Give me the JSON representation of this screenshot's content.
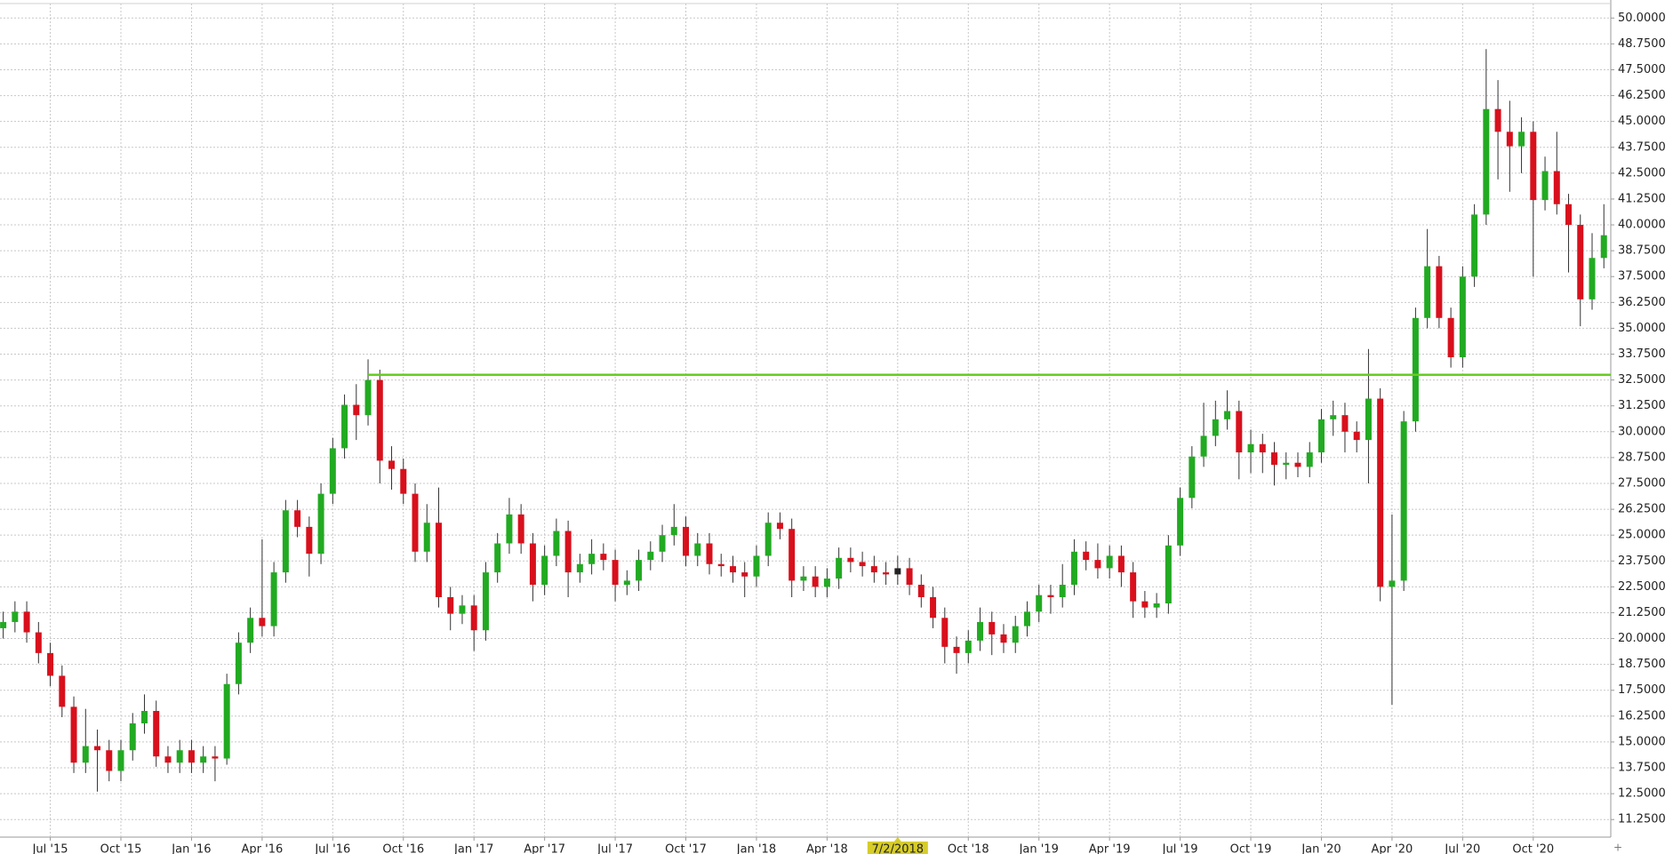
{
  "chart_data": {
    "type": "candlestick",
    "categories": [
      null,
      null,
      null,
      null,
      "Jul '15",
      null,
      null,
      null,
      null,
      null,
      "Oct '15",
      null,
      null,
      null,
      null,
      null,
      "Jan '16",
      null,
      null,
      null,
      null,
      null,
      "Apr '16",
      null,
      null,
      null,
      null,
      null,
      "Jul '16",
      null,
      null,
      null,
      null,
      null,
      "Oct '16",
      null,
      null,
      null,
      null,
      null,
      "Jan '17",
      null,
      null,
      null,
      null,
      null,
      "Apr '17",
      null,
      null,
      null,
      null,
      null,
      "Jul '17",
      null,
      null,
      null,
      null,
      null,
      "Oct '17",
      null,
      null,
      null,
      null,
      null,
      "Jan '18",
      null,
      null,
      null,
      null,
      null,
      "Apr '18",
      null,
      null,
      null,
      null,
      null,
      "7/2/2018",
      null,
      null,
      null,
      null,
      null,
      "Oct '18",
      null,
      null,
      null,
      null,
      null,
      "Jan '19",
      null,
      null,
      null,
      null,
      null,
      "Apr '19",
      null,
      null,
      null,
      null,
      null,
      "Jul '19",
      null,
      null,
      null,
      null,
      null,
      "Oct '19",
      null,
      null,
      null,
      null,
      null,
      "Jan '20",
      null,
      null,
      null,
      null,
      null,
      "Apr '20",
      null,
      null,
      null,
      null,
      null,
      "Jul '20",
      null,
      null,
      null,
      null,
      null,
      "Oct '20",
      null,
      null,
      null,
      null,
      null,
      null
    ],
    "open": [
      20.5,
      20.8,
      21.3,
      20.3,
      19.3,
      18.2,
      16.7,
      14.0,
      14.8,
      14.6,
      13.6,
      14.6,
      15.9,
      16.5,
      14.3,
      14.0,
      14.6,
      14.0,
      14.3,
      14.2,
      17.8,
      19.8,
      21.0,
      20.6,
      23.2,
      26.2,
      25.4,
      24.1,
      27.0,
      29.2,
      31.3,
      30.8,
      32.5,
      28.6,
      28.2,
      27.0,
      24.2,
      25.6,
      22.0,
      21.2,
      21.6,
      20.4,
      23.2,
      24.6,
      26.0,
      24.6,
      22.6,
      24.0,
      25.2,
      23.2,
      23.6,
      24.1,
      23.8,
      22.6,
      22.8,
      23.8,
      24.2,
      25.0,
      25.4,
      24.0,
      24.6,
      23.6,
      23.5,
      23.2,
      23.0,
      24.0,
      25.6,
      25.3,
      22.8,
      23.0,
      22.5,
      22.9,
      23.9,
      23.7,
      23.5,
      23.2,
      23.1,
      23.4,
      22.6,
      22.0,
      21.0,
      19.6,
      19.3,
      19.9,
      20.8,
      20.2,
      19.8,
      20.6,
      21.3,
      22.1,
      22.0,
      22.6,
      24.2,
      23.8,
      23.4,
      24.0,
      23.2,
      21.8,
      21.5,
      21.7,
      24.5,
      26.8,
      28.8,
      29.8,
      30.6,
      31.0,
      29.0,
      29.4,
      29.0,
      28.4,
      28.5,
      28.3,
      29.0,
      30.6,
      30.8,
      30.0,
      29.6,
      31.6,
      22.5,
      22.8,
      30.5,
      35.5,
      38.0,
      35.5,
      33.6,
      37.5,
      40.5,
      45.6,
      44.5,
      43.8,
      44.5,
      41.2,
      42.6,
      41.0,
      40.0,
      36.4,
      38.4
    ],
    "high": [
      21.3,
      21.8,
      21.8,
      20.8,
      19.8,
      18.7,
      17.2,
      16.6,
      15.6,
      15.1,
      15.1,
      16.4,
      17.3,
      17.0,
      14.8,
      15.1,
      15.1,
      14.8,
      14.8,
      18.3,
      20.3,
      21.5,
      24.8,
      23.7,
      26.7,
      26.7,
      25.9,
      27.5,
      29.7,
      31.8,
      32.3,
      33.5,
      33.0,
      29.3,
      28.7,
      27.5,
      26.5,
      27.3,
      22.5,
      22.1,
      22.1,
      23.7,
      25.1,
      26.8,
      26.5,
      25.1,
      24.5,
      25.8,
      25.7,
      24.1,
      24.8,
      24.6,
      24.3,
      23.3,
      24.3,
      24.7,
      25.5,
      26.5,
      25.9,
      25.1,
      25.1,
      24.1,
      24.0,
      23.7,
      24.5,
      26.1,
      26.1,
      25.8,
      23.5,
      23.5,
      23.4,
      24.4,
      24.4,
      24.2,
      24.0,
      23.7,
      24.0,
      23.9,
      23.1,
      22.5,
      21.5,
      20.1,
      20.4,
      21.5,
      21.3,
      20.7,
      21.1,
      21.8,
      22.6,
      22.6,
      23.6,
      24.8,
      24.7,
      24.6,
      24.5,
      24.5,
      23.7,
      22.3,
      22.2,
      25.0,
      27.3,
      29.3,
      31.4,
      31.5,
      32.0,
      31.5,
      30.1,
      29.9,
      29.5,
      29.0,
      29.0,
      29.5,
      31.1,
      31.5,
      31.4,
      30.5,
      34.0,
      32.1,
      26.0,
      31.0,
      36.0,
      39.8,
      38.5,
      36.0,
      38.0,
      41.0,
      48.5,
      47.0,
      46.0,
      45.2,
      45.0,
      43.3,
      44.5,
      41.5,
      40.5,
      39.6,
      41.0
    ],
    "low": [
      20.0,
      20.3,
      19.8,
      18.8,
      17.7,
      16.2,
      13.5,
      13.5,
      12.6,
      13.1,
      13.1,
      14.1,
      15.4,
      13.8,
      13.5,
      13.5,
      13.5,
      13.5,
      13.1,
      13.9,
      17.3,
      19.3,
      20.1,
      20.1,
      22.7,
      24.9,
      23.0,
      23.6,
      26.5,
      28.7,
      29.6,
      30.3,
      27.5,
      27.2,
      26.5,
      23.7,
      23.7,
      21.5,
      20.4,
      20.7,
      19.4,
      19.9,
      22.7,
      24.1,
      24.1,
      21.8,
      22.1,
      23.5,
      22.0,
      22.7,
      23.1,
      23.3,
      21.8,
      22.1,
      22.3,
      23.3,
      23.7,
      24.5,
      23.5,
      23.5,
      23.1,
      23.0,
      22.7,
      22.0,
      22.5,
      23.5,
      24.8,
      22.0,
      22.3,
      22.0,
      22.0,
      22.4,
      23.2,
      23.0,
      22.7,
      22.6,
      22.6,
      22.1,
      21.5,
      20.5,
      18.8,
      18.3,
      18.8,
      19.4,
      19.2,
      19.3,
      19.3,
      20.1,
      20.8,
      21.2,
      21.5,
      22.1,
      23.3,
      22.9,
      22.9,
      22.5,
      21.0,
      21.0,
      21.0,
      21.2,
      24.0,
      26.3,
      28.3,
      29.3,
      30.1,
      27.7,
      28.0,
      28.0,
      27.4,
      27.7,
      27.8,
      27.8,
      28.5,
      29.8,
      29.0,
      29.0,
      27.5,
      21.8,
      16.8,
      22.3,
      30.0,
      35.0,
      35.0,
      33.1,
      33.1,
      37.0,
      40.0,
      42.2,
      41.6,
      42.5,
      37.5,
      40.7,
      40.5,
      37.7,
      35.1,
      35.9,
      37.9
    ],
    "close": [
      20.8,
      21.3,
      20.3,
      19.3,
      18.2,
      16.7,
      14.0,
      14.8,
      14.6,
      13.6,
      14.6,
      15.9,
      16.5,
      14.3,
      14.0,
      14.6,
      14.0,
      14.3,
      14.2,
      17.8,
      19.8,
      21.0,
      20.6,
      23.2,
      26.2,
      25.4,
      24.1,
      27.0,
      29.2,
      31.3,
      30.8,
      32.5,
      28.6,
      28.2,
      27.0,
      24.2,
      25.6,
      22.0,
      21.2,
      21.6,
      20.4,
      23.2,
      24.6,
      26.0,
      24.6,
      22.6,
      24.0,
      25.2,
      23.2,
      23.6,
      24.1,
      23.8,
      22.6,
      22.8,
      23.8,
      24.2,
      25.0,
      25.4,
      24.0,
      24.6,
      23.6,
      23.5,
      23.2,
      23.0,
      24.0,
      25.6,
      25.3,
      22.8,
      23.0,
      22.5,
      22.9,
      23.9,
      23.7,
      23.5,
      23.2,
      23.1,
      23.4,
      22.6,
      22.0,
      21.0,
      19.6,
      19.3,
      19.9,
      20.8,
      20.2,
      19.8,
      20.6,
      21.3,
      22.1,
      22.0,
      22.6,
      24.2,
      23.8,
      23.4,
      24.0,
      23.2,
      21.8,
      21.5,
      21.7,
      24.5,
      26.8,
      28.8,
      29.8,
      30.6,
      31.0,
      29.0,
      29.4,
      29.0,
      28.4,
      28.5,
      28.3,
      29.0,
      30.6,
      30.8,
      30.0,
      29.6,
      31.6,
      22.5,
      22.8,
      30.5,
      35.5,
      38.0,
      35.5,
      33.6,
      37.5,
      40.5,
      45.6,
      44.5,
      43.8,
      44.5,
      41.2,
      42.6,
      41.0,
      40.0,
      36.4,
      38.4,
      39.5
    ],
    "up_color": "#22aa22",
    "down_color": "#d8101c",
    "ylim": [
      10.4,
      50.7
    ],
    "yticks": [
      {
        "value": 11.25,
        "label": "11.2500"
      },
      {
        "value": 12.5,
        "label": "12.5000"
      },
      {
        "value": 13.75,
        "label": "13.7500"
      },
      {
        "value": 15,
        "label": "15.0000"
      },
      {
        "value": 16.25,
        "label": "16.2500"
      },
      {
        "value": 17.5,
        "label": "17.5000"
      },
      {
        "value": 18.75,
        "label": "18.7500"
      },
      {
        "value": 20,
        "label": "20.0000"
      },
      {
        "value": 21.25,
        "label": "21.2500"
      },
      {
        "value": 22.5,
        "label": "22.5000"
      },
      {
        "value": 23.75,
        "label": "23.7500"
      },
      {
        "value": 25,
        "label": "25.0000"
      },
      {
        "value": 26.25,
        "label": "26.2500"
      },
      {
        "value": 27.5,
        "label": "27.5000"
      },
      {
        "value": 28.75,
        "label": "28.7500"
      },
      {
        "value": 30,
        "label": "30.0000"
      },
      {
        "value": 31.25,
        "label": "31.2500"
      },
      {
        "value": 32.5,
        "label": "32.5000"
      },
      {
        "value": 33.75,
        "label": "33.7500"
      },
      {
        "value": 35,
        "label": "35.0000"
      },
      {
        "value": 36.25,
        "label": "36.2500"
      },
      {
        "value": 37.5,
        "label": "37.5000"
      },
      {
        "value": 38.75,
        "label": "38.7500"
      },
      {
        "value": 40,
        "label": "40.0000"
      },
      {
        "value": 41.25,
        "label": "41.2500"
      },
      {
        "value": 42.5,
        "label": "42.5000"
      },
      {
        "value": 43.75,
        "label": "43.7500"
      },
      {
        "value": 45,
        "label": "45.0000"
      },
      {
        "value": 46.25,
        "label": "46.2500"
      },
      {
        "value": 47.5,
        "label": "47.5000"
      },
      {
        "value": 48.75,
        "label": "48.7500"
      },
      {
        "value": 50,
        "label": "50.0000"
      }
    ],
    "grid": true,
    "horizontal_line": {
      "value": 32.75,
      "color": "#66cc22"
    },
    "crosshair_index": 76
  }
}
